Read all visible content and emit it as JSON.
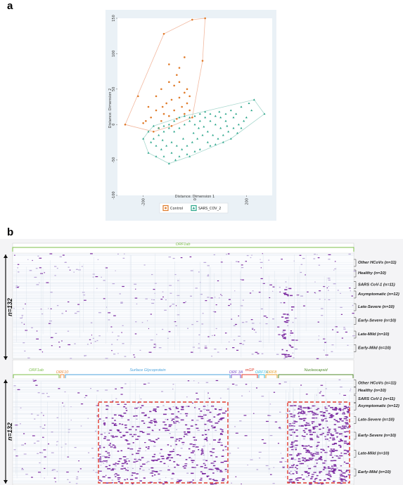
{
  "figure": {
    "panel_a_letter": "a",
    "panel_b_letter": "b"
  },
  "chart_data": [
    {
      "type": "scatter",
      "panel": "a",
      "xlabel": "Distance: Dimension 1",
      "ylabel": "Distance: Dimension 2",
      "xlim": [
        -300,
        300
      ],
      "ylim": [
        -100,
        150
      ],
      "xticks": [
        -200,
        0,
        200
      ],
      "yticks": [
        -100,
        -50,
        0,
        50,
        100,
        150
      ],
      "grid": false,
      "legend_position": "bottom",
      "colors": {
        "control": "#e07b2a",
        "sars": "#2aa58a",
        "hull_control": "#f2b9a0",
        "hull_sars": "#a8d8ce",
        "background": "#eaf1f6"
      },
      "series": [
        {
          "name": "Control",
          "marker": "circle",
          "points": [
            [
              -270,
              0
            ],
            [
              -220,
              40
            ],
            [
              -120,
              128
            ],
            [
              -10,
              148
            ],
            [
              40,
              150
            ],
            [
              30,
              90
            ],
            [
              -40,
              95
            ],
            [
              -60,
              80
            ],
            [
              -70,
              70
            ],
            [
              -100,
              60
            ],
            [
              -130,
              50
            ],
            [
              -80,
              55
            ],
            [
              -40,
              45
            ],
            [
              -30,
              50
            ],
            [
              -20,
              40
            ],
            [
              -60,
              38
            ],
            [
              -90,
              35
            ],
            [
              -110,
              30
            ],
            [
              -150,
              20
            ],
            [
              -170,
              10
            ],
            [
              -190,
              5
            ],
            [
              -130,
              5
            ],
            [
              -100,
              12
            ],
            [
              -80,
              20
            ],
            [
              -50,
              25
            ],
            [
              -40,
              15
            ],
            [
              -20,
              20
            ],
            [
              -10,
              10
            ],
            [
              -70,
              8
            ],
            [
              -140,
              -5
            ],
            [
              -160,
              -10
            ],
            [
              -90,
              -2
            ],
            [
              -120,
              15
            ],
            [
              -30,
              30
            ],
            [
              -60,
              60
            ],
            [
              -100,
              85
            ],
            [
              -200,
              2
            ],
            [
              -180,
              25
            ],
            [
              -150,
              40
            ],
            [
              -125,
              25
            ]
          ]
        },
        {
          "name": "SARS_COV_2",
          "marker": "triangle",
          "points": [
            [
              -200,
              -20
            ],
            [
              -180,
              -40
            ],
            [
              -100,
              -55
            ],
            [
              -20,
              -45
            ],
            [
              60,
              -30
            ],
            [
              180,
              -5
            ],
            [
              230,
              35
            ],
            [
              270,
              15
            ],
            [
              210,
              30
            ],
            [
              180,
              25
            ],
            [
              150,
              10
            ],
            [
              120,
              5
            ],
            [
              100,
              -5
            ],
            [
              80,
              0
            ],
            [
              60,
              5
            ],
            [
              40,
              10
            ],
            [
              20,
              5
            ],
            [
              0,
              0
            ],
            [
              -20,
              5
            ],
            [
              -40,
              0
            ],
            [
              -60,
              -5
            ],
            [
              -80,
              -10
            ],
            [
              -100,
              -5
            ],
            [
              -120,
              -10
            ],
            [
              -140,
              -15
            ],
            [
              -160,
              -20
            ],
            [
              -150,
              -30
            ],
            [
              -130,
              -35
            ],
            [
              -110,
              -30
            ],
            [
              -90,
              -25
            ],
            [
              -70,
              -30
            ],
            [
              -50,
              -35
            ],
            [
              -30,
              -30
            ],
            [
              -10,
              -25
            ],
            [
              10,
              -20
            ],
            [
              30,
              -15
            ],
            [
              50,
              -10
            ],
            [
              70,
              -15
            ],
            [
              90,
              -20
            ],
            [
              110,
              -15
            ],
            [
              130,
              -10
            ],
            [
              150,
              -5
            ],
            [
              170,
              0
            ],
            [
              190,
              5
            ],
            [
              160,
              15
            ],
            [
              140,
              20
            ],
            [
              120,
              15
            ],
            [
              100,
              10
            ],
            [
              80,
              12
            ],
            [
              60,
              15
            ],
            [
              40,
              18
            ],
            [
              20,
              15
            ],
            [
              0,
              12
            ],
            [
              -20,
              10
            ],
            [
              -40,
              12
            ],
            [
              -60,
              10
            ],
            [
              -80,
              5
            ],
            [
              -100,
              0
            ],
            [
              -120,
              -2
            ],
            [
              -140,
              -5
            ],
            [
              -160,
              -2
            ],
            [
              -180,
              -10
            ],
            [
              -170,
              -25
            ],
            [
              -150,
              -45
            ],
            [
              -120,
              -45
            ],
            [
              -90,
              -40
            ],
            [
              -60,
              -45
            ],
            [
              -30,
              -42
            ],
            [
              0,
              -38
            ],
            [
              20,
              -35
            ],
            [
              50,
              -25
            ],
            [
              80,
              -28
            ],
            [
              110,
              -25
            ],
            [
              140,
              -20
            ],
            [
              200,
              10
            ],
            [
              220,
              20
            ],
            [
              -75,
              -50
            ],
            [
              -45,
              -20
            ],
            [
              15,
              -5
            ],
            [
              95,
              18
            ],
            [
              125,
              -2
            ],
            [
              165,
              -12
            ],
            [
              35,
              -3
            ],
            [
              -5,
              -12
            ],
            [
              -125,
              -22
            ]
          ]
        }
      ]
    },
    {
      "type": "heatmap",
      "panel": "b",
      "n_label": "n=132",
      "sample_groups": [
        "Other HCoVs (n=11)",
        "Healthy (n=10)",
        "SARS CoV-1 (n=11)",
        "Asymptomatic (n=12)",
        "Late-Severe (n=10)",
        "Early-Severe (n=10)",
        "Late-Mild (n=10)",
        "Early-Mild (n=10)"
      ],
      "top_proteome": [
        {
          "name": "ORF1ab",
          "color": "#7cbf4a"
        }
      ],
      "bottom_proteome": [
        {
          "name": "ORF1ab",
          "color": "#7cbf4a"
        },
        {
          "name": "ORF10",
          "color": "#e8883a"
        },
        {
          "name": "Surface Glycoprotein",
          "color": "#4ba3dc"
        },
        {
          "name": "ORF 3A",
          "color": "#7b4fc9"
        },
        {
          "name": "mGP",
          "color": "#e03a2a"
        },
        {
          "name": "ORF7A",
          "color": "#30b8e0"
        },
        {
          "name": "ORF8",
          "color": "#e8a030"
        },
        {
          "name": "Nucleocapsid",
          "color": "#4f8a2a"
        }
      ],
      "heat_color": "#7b2aa0",
      "highlight_color": "#e33b2e"
    }
  ]
}
